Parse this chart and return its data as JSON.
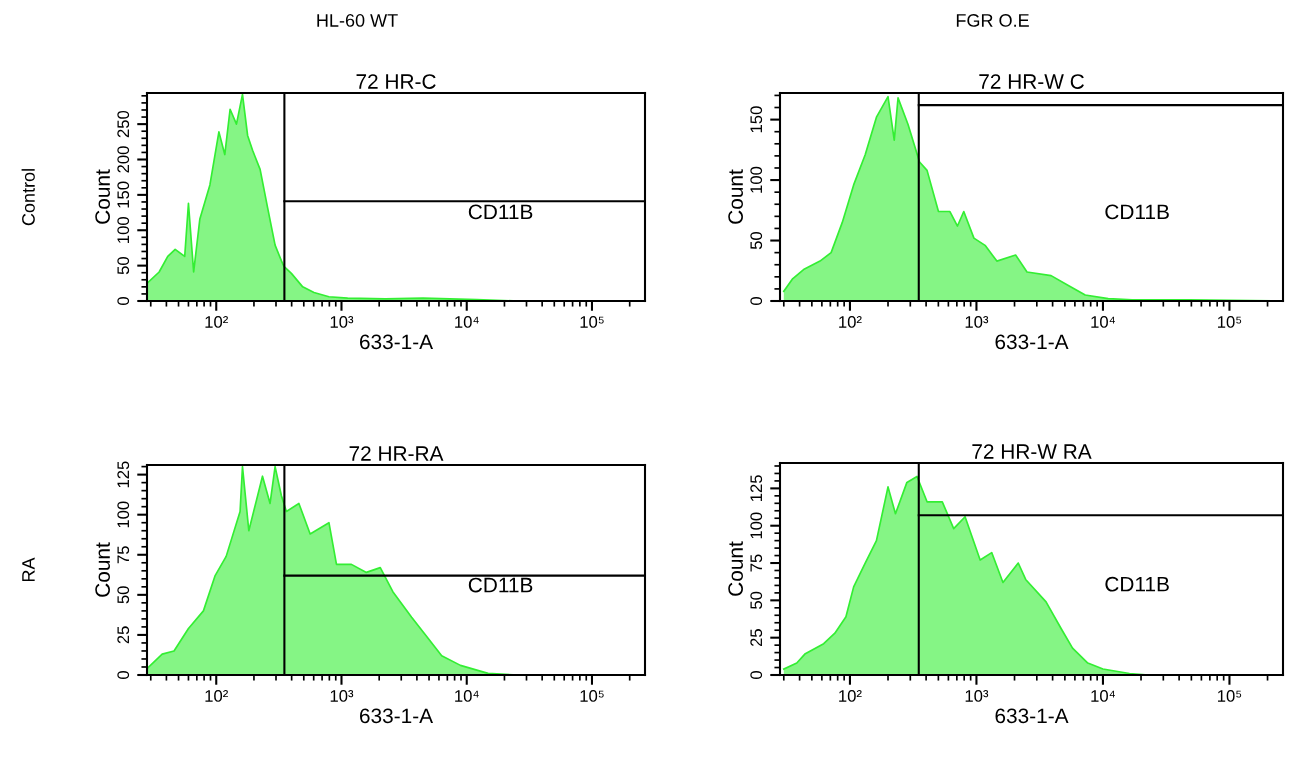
{
  "chart_data": [
    {
      "type": "area",
      "title": "72 HR-C",
      "xlabel": "633-1-A",
      "ylabel": "Count",
      "log": "x",
      "xlim": [
        28,
        265000
      ],
      "xticks": [
        {
          "value": 100,
          "label": "10²"
        },
        {
          "value": 1000,
          "label": "10³"
        },
        {
          "value": 10000,
          "label": "10⁴"
        },
        {
          "value": 100000,
          "label": "10⁵"
        }
      ],
      "ylim": [
        0,
        294
      ],
      "yticks": [
        0,
        50,
        100,
        150,
        200,
        250
      ],
      "series": [
        {
          "color": "#33ee33",
          "x": [
            28,
            35,
            41,
            47,
            56,
            60,
            66,
            74,
            89,
            105,
            117,
            129,
            145,
            162,
            178,
            195,
            224,
            257,
            295,
            331,
            347,
            398,
            490,
            603,
            794,
            1120,
            2240,
            4470,
            12000,
            25700,
            265000
          ],
          "values": [
            25,
            41,
            63,
            73,
            63,
            138,
            41,
            116,
            164,
            239,
            207,
            271,
            250,
            292,
            234,
            213,
            186,
            132,
            79,
            57,
            49,
            39,
            20,
            12,
            6,
            4,
            3,
            4,
            2,
            0,
            0
          ]
        },
        {
          "type": "line",
          "color": "#000000",
          "x": [
            350,
            265000
          ],
          "values": [
            141,
            141
          ]
        }
      ],
      "ref_lines": [
        {
          "axis": "x",
          "value": 350,
          "color": "#000000"
        }
      ],
      "annotations": [
        "CD11B",
        "HL-60 WT",
        "Control"
      ]
    },
    {
      "type": "area",
      "title": "72 HR-W C",
      "xlabel": "633-1-A",
      "ylabel": "Count",
      "log": "x",
      "xlim": [
        28,
        265000
      ],
      "xticks": [
        {
          "value": 100,
          "label": "10²"
        },
        {
          "value": 1000,
          "label": "10³"
        },
        {
          "value": 10000,
          "label": "10⁴"
        },
        {
          "value": 100000,
          "label": "10⁵"
        }
      ],
      "ylim": [
        0,
        172
      ],
      "yticks": [
        0,
        50,
        100,
        150
      ],
      "series": [
        {
          "color": "#33ee33",
          "x": [
            30,
            35,
            43,
            58,
            71,
            87,
            107,
            132,
            162,
            200,
            224,
            240,
            288,
            355,
            407,
            501,
            617,
            708,
            794,
            955,
            1170,
            1450,
            2040,
            2510,
            3890,
            5500,
            7240,
            11000,
            17000,
            47900,
            265000
          ],
          "values": [
            8,
            18,
            26,
            33,
            40,
            65,
            96,
            121,
            152,
            169,
            133,
            168,
            146,
            115,
            108,
            74,
            74,
            62,
            74,
            52,
            46,
            33,
            38,
            24,
            21,
            12,
            5,
            2,
            1,
            1,
            0
          ]
        },
        {
          "type": "line",
          "color": "#000000",
          "x": [
            350,
            265000
          ],
          "values": [
            162,
            162
          ]
        }
      ],
      "ref_lines": [
        {
          "axis": "x",
          "value": 350,
          "color": "#000000"
        }
      ],
      "annotations": [
        "CD11B",
        "FGR O.E"
      ]
    },
    {
      "type": "area",
      "title": "72 HR-RA",
      "xlabel": "633-1-A",
      "ylabel": "Count",
      "log": "x",
      "xlim": [
        28,
        265000
      ],
      "xticks": [
        {
          "value": 100,
          "label": "10²"
        },
        {
          "value": 1000,
          "label": "10³"
        },
        {
          "value": 10000,
          "label": "10⁴"
        },
        {
          "value": 100000,
          "label": "10⁵"
        }
      ],
      "ylim": [
        0,
        131
      ],
      "yticks": [
        0,
        25,
        50,
        75,
        100,
        125
      ],
      "series": [
        {
          "color": "#33ee33",
          "x": [
            28,
            37,
            46,
            60,
            79,
            98,
            120,
            155,
            162,
            182,
            234,
            269,
            295,
            331,
            363,
            457,
            562,
            794,
            912,
            1200,
            1580,
            2040,
            2570,
            3630,
            4790,
            6310,
            8910,
            14800,
            25700,
            263000
          ],
          "values": [
            4,
            13,
            15,
            29,
            40,
            62,
            74,
            102,
            130,
            90,
            124,
            107,
            130,
            112,
            102,
            107,
            88,
            95,
            69,
            69,
            64,
            67,
            52,
            36,
            24,
            12,
            6,
            1,
            0,
            0
          ]
        },
        {
          "type": "line",
          "color": "#000000",
          "x": [
            350,
            265000
          ],
          "values": [
            62,
            62
          ]
        }
      ],
      "ref_lines": [
        {
          "axis": "x",
          "value": 350,
          "color": "#000000"
        }
      ],
      "annotations": [
        "CD11B",
        "RA"
      ]
    },
    {
      "type": "area",
      "title": "72 HR-W RA",
      "xlabel": "633-1-A",
      "ylabel": "Count",
      "log": "x",
      "xlim": [
        28,
        265000
      ],
      "xticks": [
        {
          "value": 100,
          "label": "10²"
        },
        {
          "value": 1000,
          "label": "10³"
        },
        {
          "value": 10000,
          "label": "10⁴"
        },
        {
          "value": 100000,
          "label": "10⁵"
        }
      ],
      "ylim": [
        0,
        142
      ],
      "yticks": [
        0,
        25,
        50,
        75,
        100,
        125
      ],
      "series": [
        {
          "color": "#33ee33",
          "x": [
            30,
            38,
            44,
            62,
            76,
            93,
            107,
            132,
            162,
            200,
            229,
            282,
            339,
            407,
            537,
            661,
            813,
            1070,
            1320,
            1620,
            2140,
            2450,
            3550,
            4680,
            5750,
            7590,
            10000,
            16200,
            22900,
            263000
          ],
          "values": [
            4,
            8,
            14,
            21,
            28,
            39,
            59,
            75,
            90,
            126,
            108,
            129,
            133,
            116,
            116,
            98,
            106,
            77,
            82,
            62,
            75,
            64,
            49,
            31,
            18,
            8,
            4,
            1,
            0,
            0
          ]
        },
        {
          "type": "line",
          "color": "#000000",
          "x": [
            350,
            265000
          ],
          "values": [
            107,
            107
          ]
        }
      ],
      "ref_lines": [
        {
          "axis": "x",
          "value": 350,
          "color": "#000000"
        }
      ],
      "annotations": [
        "CD11B"
      ]
    }
  ]
}
